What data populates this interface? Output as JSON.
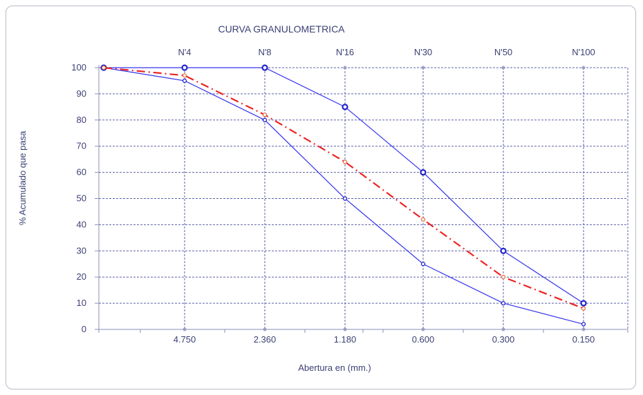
{
  "chart_data": {
    "type": "line",
    "title": "CURVA GRANULOMETRICA",
    "xlabel": "Abertura en (mm.)",
    "ylabel": "% Acumulado que pasa",
    "x_tick_labels": [
      "4.750",
      "2.360",
      "1.180",
      "0.600",
      "0.300",
      "0.150"
    ],
    "top_tick_labels": [
      "N'4",
      "N'8",
      "N'16",
      "N'30",
      "N'50",
      "N'100"
    ],
    "y_ticks": [
      0,
      10,
      20,
      30,
      40,
      50,
      60,
      70,
      80,
      90,
      100
    ],
    "ylim": [
      0,
      100
    ],
    "grid": true,
    "x": [
      "",
      "4.750",
      "2.360",
      "1.180",
      "0.600",
      "0.300",
      "0.150"
    ],
    "series": [
      {
        "key": "upper_limit",
        "values": [
          100,
          100,
          100,
          85,
          60,
          30,
          10
        ],
        "color": "#3333ee",
        "style": "solid",
        "marker": "circle-large"
      },
      {
        "key": "lower_limit",
        "values": [
          100,
          95,
          80,
          50,
          25,
          10,
          2
        ],
        "color": "#3333ee",
        "style": "solid",
        "marker": "circle-small"
      },
      {
        "key": "sample",
        "values": [
          100,
          97,
          82,
          64,
          42,
          20,
          8
        ],
        "color": "#ee2222",
        "style": "dash-dot",
        "marker": "circle-small-orange"
      }
    ],
    "colors": {
      "grid": "#5a5fa8",
      "axis": "#8a8fb8",
      "text": "#3b3f73",
      "border": "#b8bcc8"
    }
  }
}
